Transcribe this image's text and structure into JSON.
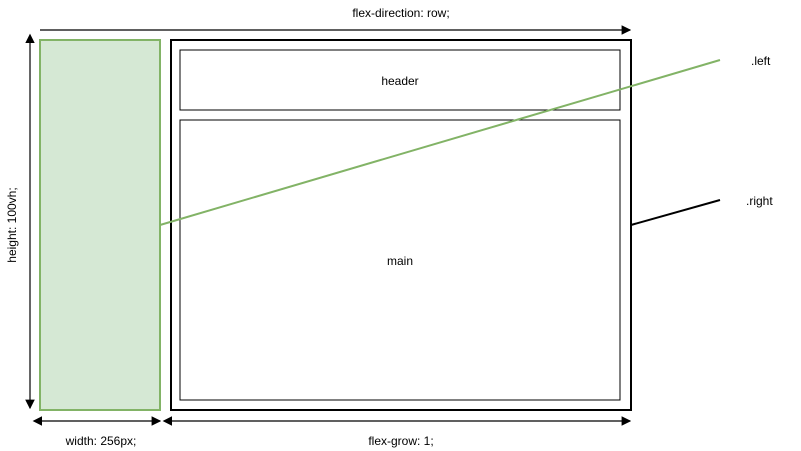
{
  "diagram": {
    "top_label": "flex-direction: row;",
    "left_vertical_label": "height: 100vh;",
    "bottom_left_label": "width: 256px;",
    "bottom_right_label": "flex-grow: 1;",
    "header_label": "header",
    "main_label": "main",
    "left_callout": ".left",
    "right_callout": ".right"
  },
  "colors": {
    "left_fill": "#d5e8d4",
    "left_stroke": "#82b366",
    "line_stroke": "#000000",
    "box_stroke": "#000000",
    "text": "#000000"
  }
}
